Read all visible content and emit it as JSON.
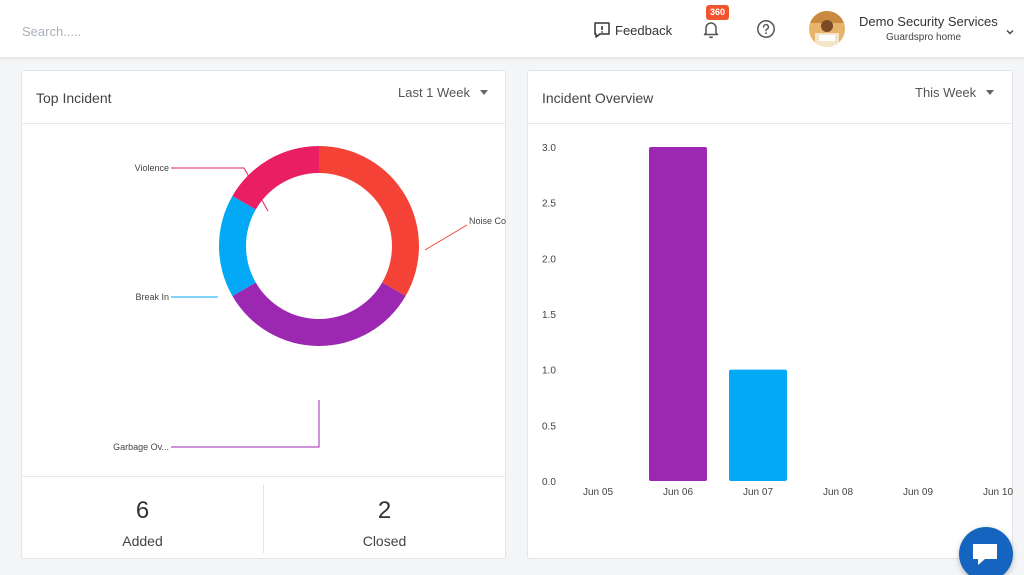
{
  "header": {
    "search_placeholder": "Search.....",
    "feedback_label": "Feedback",
    "notifications_count": "360",
    "user_name": "Demo Security Services",
    "user_subtitle": "Guardspro home"
  },
  "top_incident": {
    "title": "Top Incident",
    "range_label": "Last 1 Week",
    "stats": [
      {
        "value": "6",
        "label": "Added"
      },
      {
        "value": "2",
        "label": "Closed"
      }
    ]
  },
  "incident_overview": {
    "title": "Incident Overview",
    "range_label": "This Week"
  },
  "colors": {
    "accent": "#1565c0",
    "badge": "#f2542d"
  },
  "chart_data": [
    {
      "type": "pie",
      "donut": true,
      "categories": [
        "Noise Co",
        "Garbage Ov...",
        "Break In",
        "Violence"
      ],
      "values": [
        2,
        2,
        1,
        1
      ],
      "colors": [
        "#f44336",
        "#9c27b0",
        "#03a9f4",
        "#e91e63"
      ]
    },
    {
      "type": "bar",
      "categories": [
        "Jun 05",
        "Jun 06",
        "Jun 07",
        "Jun 08",
        "Jun 09",
        "Jun 10"
      ],
      "values": [
        0,
        3,
        1,
        0,
        0,
        0
      ],
      "colors": [
        "#9c27b0",
        "#9c27b0",
        "#03a9f4",
        "#9c27b0",
        "#9c27b0",
        "#9c27b0"
      ],
      "ylim": [
        0,
        3
      ],
      "yticks": [
        "0.0",
        "0.5",
        "1.0",
        "1.5",
        "2.0",
        "2.5",
        "3.0"
      ],
      "grid": false
    }
  ]
}
